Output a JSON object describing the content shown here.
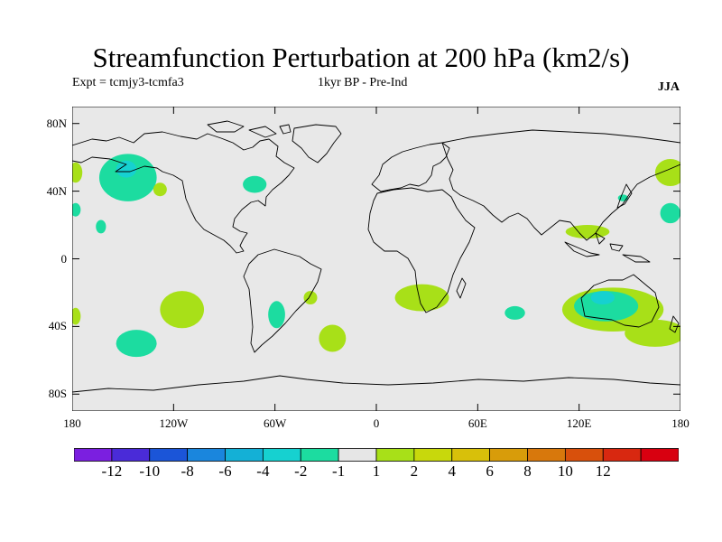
{
  "header": {
    "title": "Streamfunction Perturbation at 200 hPa (km2/s)",
    "expt": "Expt = tcmjy3-tcmfa3",
    "period": "1kyr BP - Pre-Ind",
    "season": "JJA"
  },
  "axes": {
    "lat_ticks": [
      {
        "value": 80,
        "label": "80N"
      },
      {
        "value": 40,
        "label": "40N"
      },
      {
        "value": 0,
        "label": "0"
      },
      {
        "value": -40,
        "label": "40S"
      },
      {
        "value": -80,
        "label": "80S"
      }
    ],
    "lon_ticks": [
      {
        "value": -180,
        "label": "180"
      },
      {
        "value": -120,
        "label": "120W"
      },
      {
        "value": -60,
        "label": "60W"
      },
      {
        "value": 0,
        "label": "0"
      },
      {
        "value": 60,
        "label": "60E"
      },
      {
        "value": 120,
        "label": "120E"
      },
      {
        "value": 180,
        "label": "180"
      }
    ],
    "lat_range": [
      -90,
      90
    ],
    "lon_range": [
      -180,
      180
    ]
  },
  "colors": {
    "background": "#e8e8e8",
    "coast": "#000000"
  },
  "colorbar": {
    "colors": [
      "#7b1fe0",
      "#4a2bd8",
      "#1b55d8",
      "#1a86dd",
      "#14b0d6",
      "#16d1d0",
      "#1cdca0",
      "#e6e6e6",
      "#a8e018",
      "#c8d80c",
      "#d8c00a",
      "#d89c0a",
      "#d8780c",
      "#d8500c",
      "#d82810",
      "#d80010"
    ],
    "labels": [
      {
        "boundary": 1,
        "text": "-12"
      },
      {
        "boundary": 2,
        "text": "-10"
      },
      {
        "boundary": 3,
        "text": "-8"
      },
      {
        "boundary": 4,
        "text": "-6"
      },
      {
        "boundary": 5,
        "text": "-4"
      },
      {
        "boundary": 6,
        "text": "-2"
      },
      {
        "boundary": 7,
        "text": "-1"
      },
      {
        "boundary": 8,
        "text": "1"
      },
      {
        "boundary": 9,
        "text": "2"
      },
      {
        "boundary": 10,
        "text": "4"
      },
      {
        "boundary": 11,
        "text": "6"
      },
      {
        "boundary": 12,
        "text": "8"
      },
      {
        "boundary": 13,
        "text": "10"
      },
      {
        "boundary": 14,
        "text": "12"
      }
    ]
  },
  "anomalies": [
    {
      "name": "north-pacific-low",
      "lon": -147,
      "lat": 48,
      "rlon": 17,
      "rlat": 14,
      "colorIndex": 6
    },
    {
      "name": "north-pacific-low-core",
      "lon": -148,
      "lat": 53,
      "rlon": 6,
      "rlat": 5,
      "colorIndex": 5
    },
    {
      "name": "north-pacific-east-high",
      "lon": -128,
      "lat": 41,
      "rlon": 4,
      "rlat": 4,
      "colorIndex": 8
    },
    {
      "name": "dateline-west-high",
      "lon": -178,
      "lat": 51,
      "rlon": 4,
      "rlat": 6,
      "colorIndex": 8
    },
    {
      "name": "dateline-west-low",
      "lon": -178,
      "lat": 29,
      "rlon": 3,
      "rlat": 4,
      "colorIndex": 6
    },
    {
      "name": "hawaii-low",
      "lon": -163,
      "lat": 19,
      "rlon": 3,
      "rlat": 4,
      "colorIndex": 6
    },
    {
      "name": "north-atlantic-low",
      "lon": -72,
      "lat": 44,
      "rlon": 7,
      "rlat": 5,
      "colorIndex": 6
    },
    {
      "name": "south-pacific-high",
      "lon": -115,
      "lat": -30,
      "rlon": 13,
      "rlat": 11,
      "colorIndex": 8
    },
    {
      "name": "south-pacific-low",
      "lon": -142,
      "lat": -50,
      "rlon": 12,
      "rlat": 8,
      "colorIndex": 6
    },
    {
      "name": "dateline-south-high",
      "lon": -178,
      "lat": -34,
      "rlon": 3,
      "rlat": 5,
      "colorIndex": 8
    },
    {
      "name": "argentina-low",
      "lon": -59,
      "lat": -33,
      "rlon": 5,
      "rlat": 8,
      "colorIndex": 6
    },
    {
      "name": "brazil-coast-high",
      "lon": -39,
      "lat": -23,
      "rlon": 4,
      "rlat": 4,
      "colorIndex": 8
    },
    {
      "name": "south-atlantic-high",
      "lon": -26,
      "lat": -47,
      "rlon": 8,
      "rlat": 8,
      "colorIndex": 8
    },
    {
      "name": "southern-africa-high",
      "lon": 27,
      "lat": -23,
      "rlon": 16,
      "rlat": 8,
      "colorIndex": 8
    },
    {
      "name": "indian-ocean-low",
      "lon": 82,
      "lat": -32,
      "rlon": 6,
      "rlat": 4,
      "colorIndex": 6
    },
    {
      "name": "australia-high",
      "lon": 140,
      "lat": -30,
      "rlon": 30,
      "rlat": 13,
      "colorIndex": 8
    },
    {
      "name": "australia-low",
      "lon": 136,
      "lat": -28,
      "rlon": 19,
      "rlat": 9,
      "colorIndex": 6
    },
    {
      "name": "australia-low-core",
      "lon": 134,
      "lat": -23,
      "rlon": 7,
      "rlat": 4,
      "colorIndex": 5
    },
    {
      "name": "southeast-pacific-high",
      "lon": 165,
      "lat": -44,
      "rlon": 18,
      "rlat": 8,
      "colorIndex": 8
    },
    {
      "name": "west-pacific-high",
      "lon": 125,
      "lat": 16,
      "rlon": 13,
      "rlat": 4,
      "colorIndex": 8
    },
    {
      "name": "northeast-asia-high",
      "lon": 174,
      "lat": 51,
      "rlon": 9,
      "rlat": 8,
      "colorIndex": 8
    },
    {
      "name": "northwest-pacific-low",
      "lon": 174,
      "lat": 27,
      "rlon": 6,
      "rlat": 6,
      "colorIndex": 6
    },
    {
      "name": "japan-low",
      "lon": 146,
      "lat": 36,
      "rlon": 3,
      "rlat": 2,
      "colorIndex": 6
    }
  ]
}
